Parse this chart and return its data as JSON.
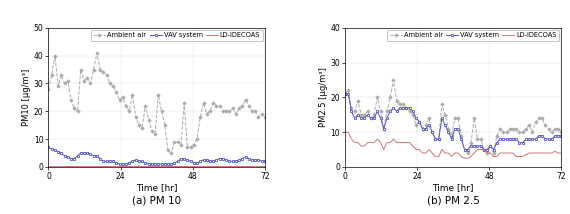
{
  "pm10": {
    "title": "(a) PM 10",
    "ylabel": "PM10 [μg/m³]",
    "ylim": [
      0,
      50
    ],
    "yticks": [
      0,
      10,
      20,
      30,
      40,
      50
    ],
    "xticks": [
      0,
      24,
      48,
      72
    ],
    "xlabel": "Time [hr]",
    "ambient_air": [
      28,
      33,
      40,
      29,
      33,
      30,
      31,
      24,
      21,
      20,
      35,
      31,
      32,
      30,
      35,
      41,
      35,
      34,
      33,
      30,
      29,
      27,
      24,
      25,
      22,
      20,
      26,
      18,
      15,
      14,
      22,
      17,
      13,
      12,
      26,
      20,
      15,
      6,
      5,
      9,
      9,
      8,
      23,
      7,
      7,
      8,
      10,
      18,
      23,
      19,
      20,
      23,
      22,
      22,
      20,
      20,
      20,
      21,
      19,
      21,
      22,
      24,
      22,
      20,
      20,
      18,
      19,
      18
    ],
    "vav_system": [
      7,
      6.5,
      6,
      5.5,
      5,
      4,
      3.5,
      3,
      3,
      4,
      5,
      5,
      5,
      4.5,
      4,
      4,
      3,
      2,
      2,
      2,
      2,
      1.5,
      1,
      1,
      1,
      1.5,
      2,
      2.5,
      2,
      2,
      1.5,
      1,
      1,
      1,
      1,
      1,
      1,
      1,
      1,
      1.5,
      2,
      3,
      3,
      2.5,
      2,
      1.5,
      1.5,
      2,
      2.5,
      2.5,
      2,
      2,
      2.5,
      3,
      3,
      2.5,
      2,
      2,
      2,
      2.5,
      3,
      3.5,
      3,
      2.5,
      2.5,
      2.5,
      2,
      2
    ],
    "ld_idecoas": [
      0.5,
      0.5,
      0.5,
      0.5,
      0.5,
      0.5,
      0.5,
      0.5,
      0.5,
      0.5,
      0.5,
      0.5,
      0.5,
      0.5,
      0.5,
      0.5,
      0.5,
      0.5,
      0.5,
      0.5,
      0.5,
      0.5,
      0.5,
      0.5,
      0.5,
      0.5,
      0.5,
      0.5,
      0.5,
      0.5,
      0.5,
      0.5,
      0.5,
      0.5,
      0.5,
      0.5,
      0.5,
      0.5,
      0.5,
      0.5,
      0.5,
      0.5,
      0.5,
      0.5,
      0.5,
      0.5,
      0.5,
      0.5,
      0.5,
      0.5,
      0.5,
      0.5,
      0.5,
      0.5,
      0.5,
      0.5,
      0.5,
      0.5,
      0.5,
      0.5,
      0.5,
      0.5,
      0.5,
      0.5,
      0.5,
      0.5,
      0.5,
      0.5
    ],
    "ambient_color": "#aaaaaa",
    "vav_color": "#5555bb",
    "ld_color": "#cc7777"
  },
  "pm25": {
    "title": "(b) PM 2.5",
    "ylabel": "PM2.5 [μg/m³]",
    "ylim": [
      0,
      40
    ],
    "yticks": [
      0,
      10,
      20,
      30,
      40
    ],
    "xticks": [
      0,
      24,
      48,
      72
    ],
    "xlabel": "Time [hr]",
    "ambient_air": [
      21,
      22,
      17,
      16,
      19,
      15,
      15,
      16,
      14,
      15,
      20,
      16,
      11,
      16,
      20,
      25,
      19,
      18,
      18,
      17,
      16,
      15,
      12,
      13,
      11,
      12,
      14,
      10,
      8,
      8,
      18,
      15,
      11,
      9,
      14,
      14,
      9,
      5,
      4,
      7,
      14,
      8,
      8,
      5,
      4,
      6,
      4,
      9,
      11,
      10,
      10,
      11,
      11,
      11,
      10,
      10,
      11,
      12,
      10,
      13,
      14,
      14,
      12,
      11,
      10,
      11,
      11,
      10
    ],
    "vav_system": [
      21,
      21,
      16,
      14,
      15,
      14,
      14,
      15,
      14,
      14,
      16,
      14,
      11,
      14,
      16,
      17,
      16,
      17,
      17,
      17,
      17,
      16,
      14,
      13,
      11,
      11,
      12,
      10,
      8,
      8,
      14,
      12,
      10,
      8,
      11,
      11,
      8,
      5,
      5,
      6,
      6,
      6,
      6,
      5,
      5,
      6,
      5,
      7,
      8,
      8,
      8,
      8,
      8,
      8,
      7,
      7,
      8,
      8,
      8,
      8,
      9,
      9,
      8,
      8,
      8,
      9,
      9,
      9
    ],
    "ld_idecoas": [
      10,
      10,
      8,
      7,
      7,
      6,
      6,
      7,
      7,
      7,
      8,
      7,
      5,
      7,
      7,
      8,
      7,
      7,
      7,
      7,
      7,
      6,
      5,
      5,
      4,
      4,
      5,
      4,
      3,
      3,
      5,
      4,
      4,
      3,
      4,
      4,
      3,
      2.5,
      2.5,
      3,
      4,
      5,
      5,
      5,
      4,
      4,
      3,
      3,
      4,
      4,
      4,
      4,
      4,
      3,
      3,
      3,
      3.5,
      4,
      4,
      4,
      4,
      4,
      4,
      4,
      4,
      4.5,
      4,
      4
    ],
    "ambient_color": "#aaaaaa",
    "vav_color": "#5555bb",
    "ld_color": "#cc7777"
  },
  "legend_labels": [
    "Ambient air",
    "VAV system",
    "LD-IDECOAS"
  ],
  "caption_pm10": "(a) PM 10",
  "caption_pm25": "(b) PM 2.5"
}
